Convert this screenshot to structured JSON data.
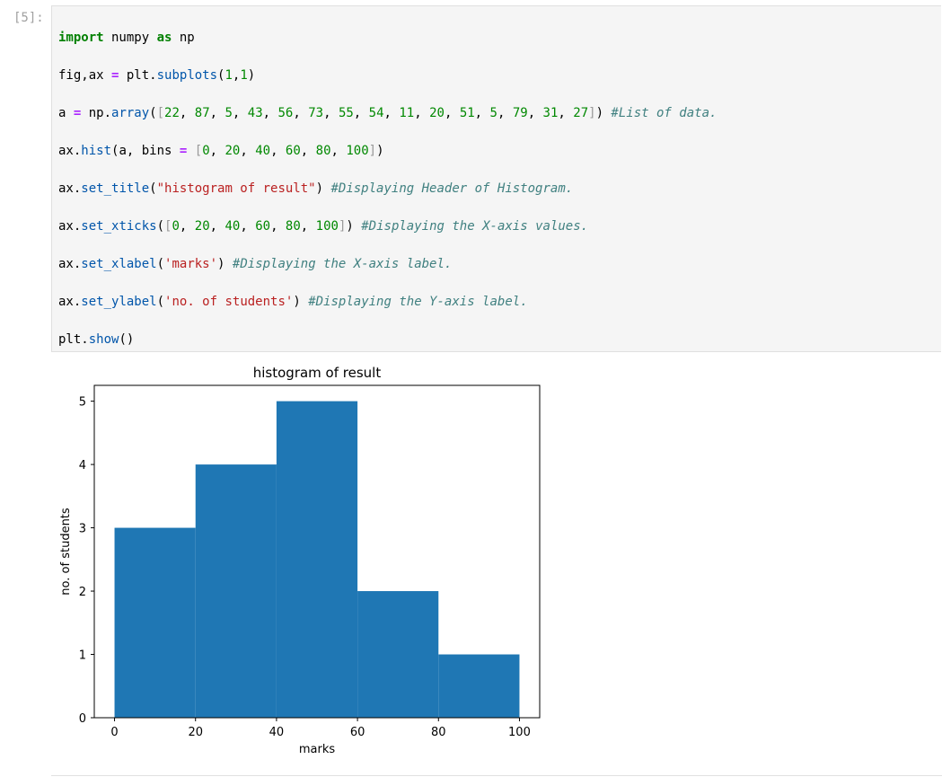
{
  "cell": {
    "prompt": "[5]:",
    "code": [
      [
        [
          "import",
          "#008000",
          "bold"
        ],
        [
          " numpy ",
          "#000000"
        ],
        [
          "as",
          "#008000",
          "bold"
        ],
        [
          " np",
          "#000000"
        ]
      ],
      [
        [
          "fig,ax ",
          "#000000"
        ],
        [
          "=",
          "#aa22ff",
          "bold"
        ],
        [
          " plt.",
          "#000000"
        ],
        [
          "subplots",
          "#0055aa"
        ],
        [
          "(",
          "#000000"
        ],
        [
          "1",
          "#008800"
        ],
        [
          ",",
          "#000000"
        ],
        [
          "1",
          "#008800"
        ],
        [
          ")",
          "#000000"
        ]
      ],
      [
        [
          "a ",
          "#000000"
        ],
        [
          "=",
          "#aa22ff",
          "bold"
        ],
        [
          " np.",
          "#000000"
        ],
        [
          "array",
          "#0055aa"
        ],
        [
          "(",
          "#000000"
        ],
        [
          "[",
          "#999999"
        ],
        [
          "22",
          "#008800"
        ],
        [
          ", ",
          "#000000"
        ],
        [
          "87",
          "#008800"
        ],
        [
          ", ",
          "#000000"
        ],
        [
          "5",
          "#008800"
        ],
        [
          ", ",
          "#000000"
        ],
        [
          "43",
          "#008800"
        ],
        [
          ", ",
          "#000000"
        ],
        [
          "56",
          "#008800"
        ],
        [
          ", ",
          "#000000"
        ],
        [
          "73",
          "#008800"
        ],
        [
          ", ",
          "#000000"
        ],
        [
          "55",
          "#008800"
        ],
        [
          ", ",
          "#000000"
        ],
        [
          "54",
          "#008800"
        ],
        [
          ", ",
          "#000000"
        ],
        [
          "11",
          "#008800"
        ],
        [
          ", ",
          "#000000"
        ],
        [
          "20",
          "#008800"
        ],
        [
          ", ",
          "#000000"
        ],
        [
          "51",
          "#008800"
        ],
        [
          ", ",
          "#000000"
        ],
        [
          "5",
          "#008800"
        ],
        [
          ", ",
          "#000000"
        ],
        [
          "79",
          "#008800"
        ],
        [
          ", ",
          "#000000"
        ],
        [
          "31",
          "#008800"
        ],
        [
          ", ",
          "#000000"
        ],
        [
          "27",
          "#008800"
        ],
        [
          "]",
          "#999999"
        ],
        [
          ") ",
          "#000000"
        ],
        [
          "#List of data.",
          "#408080",
          "italic"
        ]
      ],
      [
        [
          "ax.",
          "#000000"
        ],
        [
          "hist",
          "#0055aa"
        ],
        [
          "(a, bins ",
          "#000000"
        ],
        [
          "=",
          "#aa22ff",
          "bold"
        ],
        [
          " ",
          "#000000"
        ],
        [
          "[",
          "#999999"
        ],
        [
          "0",
          "#008800"
        ],
        [
          ", ",
          "#000000"
        ],
        [
          "20",
          "#008800"
        ],
        [
          ", ",
          "#000000"
        ],
        [
          "40",
          "#008800"
        ],
        [
          ", ",
          "#000000"
        ],
        [
          "60",
          "#008800"
        ],
        [
          ", ",
          "#000000"
        ],
        [
          "80",
          "#008800"
        ],
        [
          ", ",
          "#000000"
        ],
        [
          "100",
          "#008800"
        ],
        [
          "]",
          "#999999"
        ],
        [
          ")",
          "#000000"
        ]
      ],
      [
        [
          "ax.",
          "#000000"
        ],
        [
          "set_title",
          "#0055aa"
        ],
        [
          "(",
          "#000000"
        ],
        [
          "\"histogram of result\"",
          "#ba2121"
        ],
        [
          ") ",
          "#000000"
        ],
        [
          "#Displaying Header of Histogram.",
          "#408080",
          "italic"
        ]
      ],
      [
        [
          "ax.",
          "#000000"
        ],
        [
          "set_xticks",
          "#0055aa"
        ],
        [
          "(",
          "#000000"
        ],
        [
          "[",
          "#999999"
        ],
        [
          "0",
          "#008800"
        ],
        [
          ", ",
          "#000000"
        ],
        [
          "20",
          "#008800"
        ],
        [
          ", ",
          "#000000"
        ],
        [
          "40",
          "#008800"
        ],
        [
          ", ",
          "#000000"
        ],
        [
          "60",
          "#008800"
        ],
        [
          ", ",
          "#000000"
        ],
        [
          "80",
          "#008800"
        ],
        [
          ", ",
          "#000000"
        ],
        [
          "100",
          "#008800"
        ],
        [
          "]",
          "#999999"
        ],
        [
          ") ",
          "#000000"
        ],
        [
          "#Displaying the X-axis values.",
          "#408080",
          "italic"
        ]
      ],
      [
        [
          "ax.",
          "#000000"
        ],
        [
          "set_xlabel",
          "#0055aa"
        ],
        [
          "(",
          "#000000"
        ],
        [
          "'marks'",
          "#ba2121"
        ],
        [
          ") ",
          "#000000"
        ],
        [
          "#Displaying the X-axis label.",
          "#408080",
          "italic"
        ]
      ],
      [
        [
          "ax.",
          "#000000"
        ],
        [
          "set_ylabel",
          "#0055aa"
        ],
        [
          "(",
          "#000000"
        ],
        [
          "'no. of students'",
          "#ba2121"
        ],
        [
          ") ",
          "#000000"
        ],
        [
          "#Displaying the Y-axis label.",
          "#408080",
          "italic"
        ]
      ],
      [
        [
          "plt.",
          "#000000"
        ],
        [
          "show",
          "#0055aa"
        ],
        [
          "()",
          "#000000"
        ]
      ]
    ]
  },
  "chart_data": {
    "type": "histogram",
    "title": "histogram of result",
    "x_label": "marks",
    "y_label": "no. of students",
    "bins": [
      0,
      20,
      40,
      60,
      80,
      100
    ],
    "values": [
      3,
      4,
      5,
      2,
      1
    ],
    "color": "#1f77b4",
    "xlim": [
      -5,
      105
    ],
    "xticks": [
      0,
      20,
      40,
      60,
      80,
      100
    ],
    "ylim": [
      0,
      5.25
    ],
    "yticks": [
      0,
      1,
      2,
      3,
      4,
      5
    ]
  }
}
